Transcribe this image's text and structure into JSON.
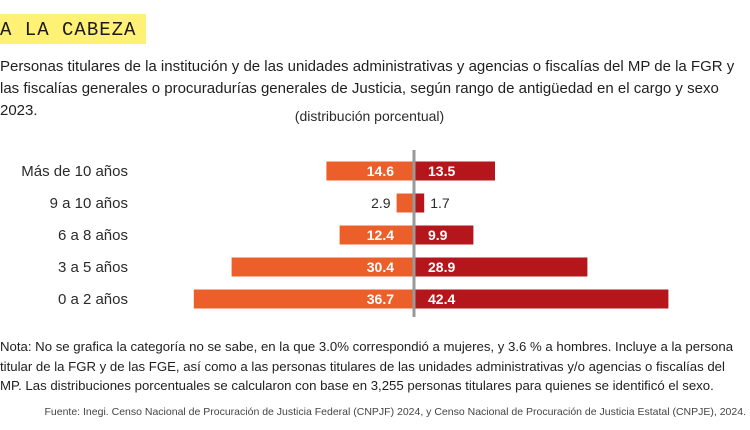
{
  "header": {
    "text": "A LA CABEZA"
  },
  "title": "Personas titulares de la institución y de las unidades administrativas y agencias o fiscalías del MP de la FGR y las fiscalías generales o procuradurías generales de Justicia, según rango de antigüedad en el cargo y sexo 2023.",
  "subtitle": "(distribución porcentual)",
  "note": "Nota: No se grafica la categoría no se sabe, en la que 3.0% correspondió a mujeres, y 3.6 % a hombres. Incluye a la persona titular de la FGR y de las FGE, así como a las personas titulares de las unidades administrativas y/o agencias o fiscalías del MP. Las distribuciones porcentuales se calcularon con base en 3,255 personas titulares para quienes se identificó el sexo.",
  "source": "Fuente: Inegi. Censo Nacional de Procuración de Justicia Federal (CNPJF) 2024, y Censo Nacional de Procuración de Justicia Estatal (CNPJE), 2024.",
  "colors": {
    "left": "#ec5f2b",
    "right": "#b5161b",
    "axis": "#999999"
  },
  "chart_data": {
    "type": "bar",
    "orientation": "diverging-horizontal",
    "categories": [
      "Más de 10 años",
      "9 a 10 años",
      "6 a 8 años",
      "3 a 5 años",
      "0 a 2 años"
    ],
    "series": [
      {
        "values": [
          14.6,
          2.9,
          12.4,
          30.4,
          36.7
        ]
      },
      {
        "values": [
          13.5,
          1.7,
          9.9,
          28.9,
          42.4
        ]
      }
    ],
    "value_labels_left": [
      "14.6",
      "2.9",
      "12.4",
      "30.4",
      "36.7"
    ],
    "value_labels_right": [
      "13.5",
      "1.7",
      "9.9",
      "28.9",
      "42.4"
    ],
    "xlim": [
      -45,
      45
    ]
  }
}
